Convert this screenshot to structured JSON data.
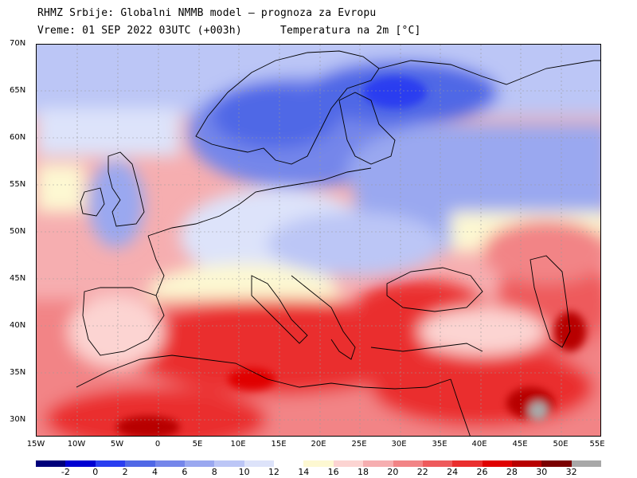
{
  "header": {
    "line1": "RHMZ Srbije: Globalni NMMB model – prognoza za Evropu",
    "line2_left": "Vreme: 01 SEP 2022 03UTC (+003h)",
    "line2_right": "Temperatura na 2m [°C]"
  },
  "axes": {
    "lat_labels": [
      "70N",
      "65N",
      "60N",
      "55N",
      "50N",
      "45N",
      "40N",
      "35N",
      "30N"
    ],
    "lon_labels": [
      "15W",
      "10W",
      "5W",
      "0",
      "5E",
      "10E",
      "15E",
      "20E",
      "25E",
      "30E",
      "35E",
      "40E",
      "45E",
      "50E",
      "55E"
    ]
  },
  "colorbar": {
    "colors": [
      "#00007a",
      "#0000d2",
      "#2a3ef0",
      "#5068e6",
      "#7586ea",
      "#9aa8f0",
      "#bcc6f6",
      "#dde3fa",
      "#ffffff",
      "#fdf8d2",
      "#fcd4d2",
      "#f6aeb0",
      "#f28486",
      "#ee5a5c",
      "#ea2e2e",
      "#e00000",
      "#b80000",
      "#7a0000",
      "#a8a8a8"
    ],
    "labels": [
      "-2",
      "0",
      "2",
      "4",
      "6",
      "8",
      "10",
      "12",
      "14",
      "16",
      "18",
      "20",
      "22",
      "24",
      "26",
      "28",
      "30",
      "32"
    ]
  }
}
